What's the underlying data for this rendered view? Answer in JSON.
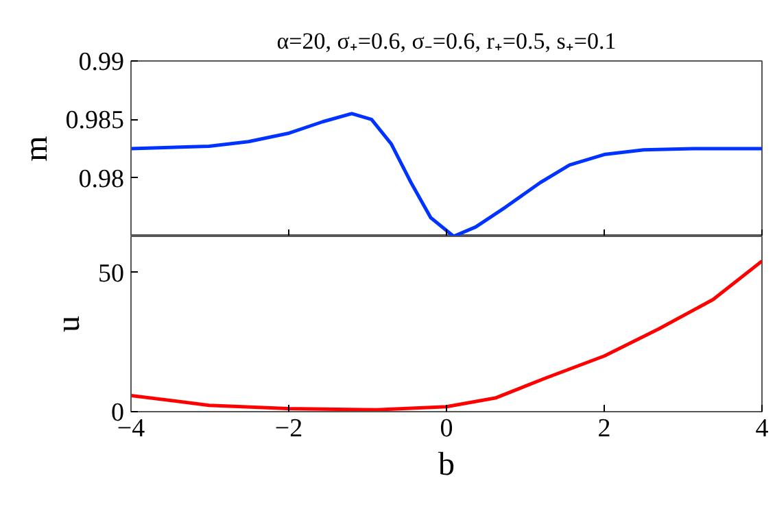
{
  "chart_data": [
    {
      "type": "line",
      "title": "α=20, σ₊=0.6, σ₋=0.6, r₊=0.5, s₊=0.1",
      "ylabel": "m",
      "x": [
        -4,
        -3.01,
        -2.51,
        -2.01,
        -1.57,
        -1.2,
        -0.95,
        -0.7,
        -0.45,
        -0.2,
        0.09,
        0.37,
        0.75,
        1.19,
        1.56,
        2.0,
        2.5,
        3.13,
        4
      ],
      "series": [
        {
          "color": "#0033ff",
          "values": [
            0.9825,
            0.9827,
            0.9831,
            0.9838,
            0.9848,
            0.9855,
            0.985,
            0.9829,
            0.9796,
            0.9766,
            0.975,
            0.9758,
            0.9775,
            0.9796,
            0.9811,
            0.982,
            0.9824,
            0.9825,
            0.9825
          ]
        }
      ],
      "xlim": [
        -4,
        4
      ],
      "xticks": [
        -4,
        -2,
        0,
        2,
        4
      ],
      "ylim": [
        0.975,
        0.99
      ],
      "yticks": [
        0.98,
        0.985,
        0.99
      ],
      "tick_labels": "y",
      "grid": false
    },
    {
      "type": "line",
      "xlabel": "b",
      "ylabel": "u",
      "x": [
        -4,
        -3.01,
        -2.01,
        -0.89,
        0,
        0.63,
        1.25,
        2.0,
        2.69,
        3.38,
        4
      ],
      "series": [
        {
          "color": "#ff0000",
          "values": [
            5.8,
            2.3,
            1.1,
            0.7,
            1.8,
            5.0,
            12.0,
            20.0,
            29.7,
            40.3,
            54.1
          ]
        }
      ],
      "xlim": [
        -4,
        4
      ],
      "xticks": [
        -4,
        -2,
        0,
        2,
        4
      ],
      "ylim": [
        0,
        63
      ],
      "yticks": [
        0,
        50
      ],
      "grid": false
    }
  ]
}
